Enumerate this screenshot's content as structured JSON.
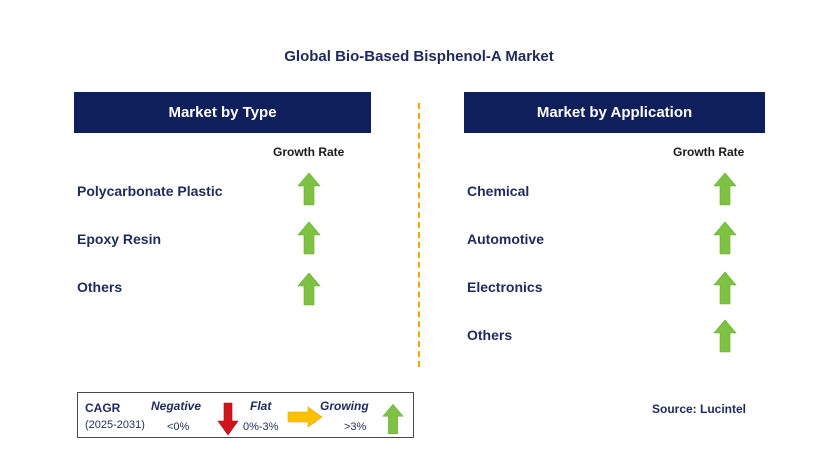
{
  "title": "Global Bio-Based Bisphenol-A Market",
  "left_panel": {
    "header": "Market by Type",
    "growth_label": "Growth Rate",
    "rows": [
      {
        "label": "Polycarbonate Plastic",
        "trend": "growing"
      },
      {
        "label": "Epoxy Resin",
        "trend": "growing"
      },
      {
        "label": "Others",
        "trend": "growing"
      }
    ]
  },
  "right_panel": {
    "header": "Market by Application",
    "growth_label": "Growth Rate",
    "rows": [
      {
        "label": "Chemical",
        "trend": "growing"
      },
      {
        "label": "Automotive",
        "trend": "growing"
      },
      {
        "label": "Electronics",
        "trend": "growing"
      },
      {
        "label": "Others",
        "trend": "growing"
      }
    ]
  },
  "legend": {
    "cagr_label": "CAGR",
    "period": "(2025-2031)",
    "negative_label": "Negative",
    "negative_value": "<0%",
    "flat_label": "Flat",
    "flat_value": "0%-3%",
    "growing_label": "Growing",
    "growing_value": ">3%"
  },
  "source": "Source: Lucintel",
  "colors": {
    "header_bg": "#0f1f5c",
    "text": "#1f2a5c",
    "growing": "#7dc242",
    "negative": "#d0141c",
    "flat": "#ffc000",
    "divider": "#f0a800"
  }
}
